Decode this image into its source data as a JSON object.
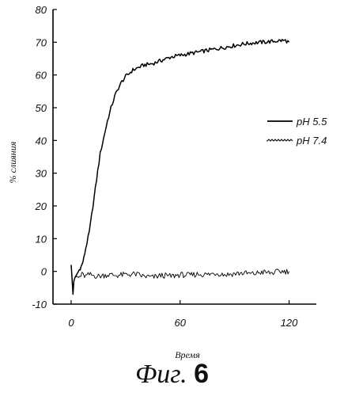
{
  "chart_data": {
    "type": "line",
    "title": "",
    "xlabel": "Время",
    "ylabel": "% слияния",
    "xlim": [
      -10,
      135
    ],
    "ylim": [
      -10,
      80
    ],
    "xticks": [
      0,
      60,
      120
    ],
    "xtick_labels": [
      "0",
      "60",
      "120"
    ],
    "yticks": [
      -10,
      0,
      10,
      20,
      30,
      40,
      50,
      60,
      70,
      80
    ],
    "ytick_labels": [
      "-10",
      "0",
      "10",
      "20",
      "30",
      "40",
      "50",
      "60",
      "70",
      "80"
    ],
    "legend_position": "right",
    "grid": false,
    "series": [
      {
        "name": "pH 5.5",
        "color": "#000000",
        "x": [
          0,
          0.5,
          1,
          1.5,
          2,
          3,
          4,
          5,
          6,
          7,
          8,
          10,
          12,
          14,
          16,
          18,
          20,
          22,
          24,
          26,
          28,
          30,
          32,
          34,
          36,
          38,
          40,
          45,
          50,
          55,
          60,
          65,
          70,
          75,
          80,
          85,
          90,
          95,
          100,
          105,
          110,
          115,
          118,
          120
        ],
        "values": [
          2,
          -2,
          -7,
          -3,
          -2,
          -1,
          0,
          1,
          2,
          4,
          7,
          12,
          20,
          28,
          36,
          41,
          46,
          50,
          53.5,
          56,
          58,
          59.5,
          60.5,
          61.5,
          62,
          62.5,
          63,
          63.5,
          64.5,
          65.5,
          66,
          66.5,
          67,
          67.5,
          68,
          68.5,
          69,
          69.5,
          69.8,
          70,
          70.2,
          70.5,
          70.5,
          70
        ]
      },
      {
        "name": "pH 7.4",
        "color": "#000000",
        "x": [
          0,
          0.5,
          1,
          1.5,
          2,
          3,
          4,
          6,
          8,
          10,
          15,
          20,
          25,
          30,
          35,
          40,
          45,
          50,
          55,
          60,
          65,
          70,
          75,
          80,
          85,
          90,
          95,
          100,
          105,
          110,
          115,
          120
        ],
        "values": [
          2,
          -3,
          -7,
          -3,
          -2,
          -1.5,
          -2,
          -1,
          -1.5,
          -1,
          -1.5,
          -1,
          -1.2,
          -1,
          -0.8,
          -1.5,
          -1.8,
          -1.2,
          -1.5,
          -1,
          -1.2,
          -0.8,
          -1,
          -0.5,
          -1,
          -0.7,
          -0.5,
          -0.8,
          -0.2,
          -0.5,
          0,
          0
        ]
      }
    ]
  },
  "caption": {
    "prefix": "Фиг.",
    "number": "6"
  }
}
